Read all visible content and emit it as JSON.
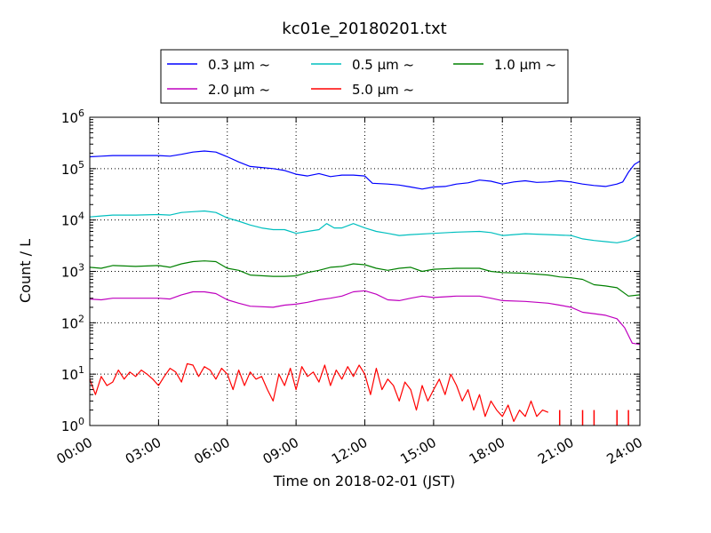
{
  "chart_data": {
    "type": "line",
    "title": "kc01e_20180201.txt",
    "xlabel": "Time on 2018-02-01 (JST)",
    "ylabel": "Count / L",
    "y_scale": "log",
    "ylim": [
      1,
      1000000
    ],
    "xlim": [
      "00:00",
      "24:00"
    ],
    "x_ticks": [
      "00:00",
      "03:00",
      "06:00",
      "09:00",
      "12:00",
      "15:00",
      "18:00",
      "21:00",
      "24:00"
    ],
    "y_ticks": [
      {
        "base": "10",
        "exp": "0"
      },
      {
        "base": "10",
        "exp": "1"
      },
      {
        "base": "10",
        "exp": "2"
      },
      {
        "base": "10",
        "exp": "3"
      },
      {
        "base": "10",
        "exp": "4"
      },
      {
        "base": "10",
        "exp": "5"
      },
      {
        "base": "10",
        "exp": "6"
      }
    ],
    "grid": true,
    "legend_placement": "top-center",
    "series": [
      {
        "name": "0.3 μm ~",
        "color": "#0000ff",
        "points": [
          [
            "00:00",
            170000
          ],
          [
            "00:30",
            175000
          ],
          [
            "01:00",
            180000
          ],
          [
            "02:00",
            180000
          ],
          [
            "03:00",
            180000
          ],
          [
            "03:30",
            175000
          ],
          [
            "04:00",
            190000
          ],
          [
            "04:30",
            210000
          ],
          [
            "05:00",
            220000
          ],
          [
            "05:30",
            210000
          ],
          [
            "06:00",
            170000
          ],
          [
            "06:30",
            135000
          ],
          [
            "07:00",
            110000
          ],
          [
            "07:30",
            105000
          ],
          [
            "08:00",
            100000
          ],
          [
            "08:30",
            92000
          ],
          [
            "09:00",
            78000
          ],
          [
            "09:30",
            72000
          ],
          [
            "10:00",
            80000
          ],
          [
            "10:30",
            70000
          ],
          [
            "11:00",
            75000
          ],
          [
            "11:30",
            75000
          ],
          [
            "12:00",
            72000
          ],
          [
            "12:20",
            52000
          ],
          [
            "13:00",
            50000
          ],
          [
            "13:30",
            48000
          ],
          [
            "14:00",
            44000
          ],
          [
            "14:30",
            40000
          ],
          [
            "15:00",
            44000
          ],
          [
            "15:30",
            45000
          ],
          [
            "16:00",
            50000
          ],
          [
            "16:30",
            53000
          ],
          [
            "17:00",
            60000
          ],
          [
            "17:30",
            57000
          ],
          [
            "18:00",
            50000
          ],
          [
            "18:30",
            55000
          ],
          [
            "19:00",
            58000
          ],
          [
            "19:30",
            54000
          ],
          [
            "20:00",
            55000
          ],
          [
            "20:30",
            58000
          ],
          [
            "21:00",
            55000
          ],
          [
            "21:30",
            50000
          ],
          [
            "22:00",
            47000
          ],
          [
            "22:30",
            45000
          ],
          [
            "23:00",
            50000
          ],
          [
            "23:15",
            55000
          ],
          [
            "23:30",
            85000
          ],
          [
            "23:45",
            120000
          ],
          [
            "24:00",
            140000
          ]
        ]
      },
      {
        "name": "0.5 μm ~",
        "color": "#00bfbf",
        "points": [
          [
            "00:00",
            11500
          ],
          [
            "00:30",
            12000
          ],
          [
            "01:00",
            12500
          ],
          [
            "02:00",
            12500
          ],
          [
            "03:00",
            12800
          ],
          [
            "03:30",
            12500
          ],
          [
            "04:00",
            14000
          ],
          [
            "04:30",
            14500
          ],
          [
            "05:00",
            15000
          ],
          [
            "05:30",
            14000
          ],
          [
            "06:00",
            11000
          ],
          [
            "06:30",
            9500
          ],
          [
            "07:00",
            8000
          ],
          [
            "07:30",
            7000
          ],
          [
            "08:00",
            6500
          ],
          [
            "08:30",
            6500
          ],
          [
            "09:00",
            5500
          ],
          [
            "09:30",
            6000
          ],
          [
            "10:00",
            6500
          ],
          [
            "10:20",
            8500
          ],
          [
            "10:40",
            7000
          ],
          [
            "11:00",
            7000
          ],
          [
            "11:30",
            8500
          ],
          [
            "12:00",
            7000
          ],
          [
            "12:30",
            6000
          ],
          [
            "13:00",
            5500
          ],
          [
            "13:30",
            5000
          ],
          [
            "14:00",
            5200
          ],
          [
            "15:00",
            5500
          ],
          [
            "16:00",
            5800
          ],
          [
            "17:00",
            6000
          ],
          [
            "17:30",
            5700
          ],
          [
            "18:00",
            5000
          ],
          [
            "18:30",
            5200
          ],
          [
            "19:00",
            5400
          ],
          [
            "20:00",
            5200
          ],
          [
            "21:00",
            5000
          ],
          [
            "21:30",
            4300
          ],
          [
            "22:00",
            4000
          ],
          [
            "22:30",
            3800
          ],
          [
            "23:00",
            3600
          ],
          [
            "23:30",
            4000
          ],
          [
            "24:00",
            5200
          ]
        ]
      },
      {
        "name": "1.0 μm ~",
        "color": "#008000",
        "points": [
          [
            "00:00",
            1200
          ],
          [
            "00:30",
            1150
          ],
          [
            "01:00",
            1300
          ],
          [
            "02:00",
            1250
          ],
          [
            "03:00",
            1300
          ],
          [
            "03:30",
            1200
          ],
          [
            "04:00",
            1400
          ],
          [
            "04:30",
            1550
          ],
          [
            "05:00",
            1600
          ],
          [
            "05:30",
            1550
          ],
          [
            "06:00",
            1150
          ],
          [
            "06:30",
            1050
          ],
          [
            "07:00",
            850
          ],
          [
            "08:00",
            800
          ],
          [
            "08:30",
            800
          ],
          [
            "09:00",
            820
          ],
          [
            "09:30",
            950
          ],
          [
            "10:00",
            1050
          ],
          [
            "10:30",
            1200
          ],
          [
            "11:00",
            1250
          ],
          [
            "11:30",
            1400
          ],
          [
            "12:00",
            1350
          ],
          [
            "12:30",
            1150
          ],
          [
            "13:00",
            1050
          ],
          [
            "13:30",
            1150
          ],
          [
            "14:00",
            1200
          ],
          [
            "14:30",
            1000
          ],
          [
            "15:00",
            1100
          ],
          [
            "16:00",
            1150
          ],
          [
            "17:00",
            1150
          ],
          [
            "17:30",
            1000
          ],
          [
            "18:00",
            950
          ],
          [
            "19:00",
            920
          ],
          [
            "20:00",
            850
          ],
          [
            "20:30",
            780
          ],
          [
            "21:00",
            750
          ],
          [
            "21:30",
            700
          ],
          [
            "22:00",
            550
          ],
          [
            "22:30",
            520
          ],
          [
            "23:00",
            480
          ],
          [
            "23:30",
            330
          ],
          [
            "24:00",
            350
          ]
        ]
      },
      {
        "name": "2.0 μm ~",
        "color": "#bf00bf",
        "points": [
          [
            "00:00",
            290
          ],
          [
            "00:30",
            280
          ],
          [
            "01:00",
            300
          ],
          [
            "02:00",
            300
          ],
          [
            "03:00",
            300
          ],
          [
            "03:30",
            290
          ],
          [
            "04:00",
            350
          ],
          [
            "04:30",
            400
          ],
          [
            "05:00",
            400
          ],
          [
            "05:30",
            370
          ],
          [
            "06:00",
            280
          ],
          [
            "06:30",
            240
          ],
          [
            "07:00",
            210
          ],
          [
            "08:00",
            200
          ],
          [
            "08:30",
            220
          ],
          [
            "09:00",
            230
          ],
          [
            "09:30",
            250
          ],
          [
            "10:00",
            280
          ],
          [
            "10:30",
            300
          ],
          [
            "11:00",
            330
          ],
          [
            "11:30",
            400
          ],
          [
            "12:00",
            420
          ],
          [
            "12:30",
            360
          ],
          [
            "13:00",
            280
          ],
          [
            "13:30",
            270
          ],
          [
            "14:00",
            300
          ],
          [
            "14:30",
            330
          ],
          [
            "15:00",
            310
          ],
          [
            "16:00",
            330
          ],
          [
            "17:00",
            330
          ],
          [
            "17:30",
            300
          ],
          [
            "18:00",
            270
          ],
          [
            "19:00",
            260
          ],
          [
            "20:00",
            240
          ],
          [
            "20:30",
            220
          ],
          [
            "21:00",
            200
          ],
          [
            "21:30",
            160
          ],
          [
            "22:00",
            150
          ],
          [
            "22:30",
            140
          ],
          [
            "23:00",
            120
          ],
          [
            "23:20",
            80
          ],
          [
            "23:40",
            40
          ],
          [
            "24:00",
            38
          ]
        ]
      },
      {
        "name": "5.0 μm ~",
        "color": "#ff0000",
        "points": [
          [
            "00:00",
            8
          ],
          [
            "00:15",
            4
          ],
          [
            "00:30",
            9
          ],
          [
            "00:45",
            6
          ],
          [
            "01:00",
            7
          ],
          [
            "01:15",
            12
          ],
          [
            "01:30",
            8
          ],
          [
            "01:45",
            11
          ],
          [
            "02:00",
            9
          ],
          [
            "02:15",
            12
          ],
          [
            "02:30",
            10
          ],
          [
            "02:45",
            8
          ],
          [
            "03:00",
            6
          ],
          [
            "03:15",
            9
          ],
          [
            "03:30",
            13
          ],
          [
            "03:45",
            11
          ],
          [
            "04:00",
            7
          ],
          [
            "04:15",
            16
          ],
          [
            "04:30",
            15
          ],
          [
            "04:45",
            9
          ],
          [
            "05:00",
            14
          ],
          [
            "05:15",
            12
          ],
          [
            "05:30",
            8
          ],
          [
            "05:45",
            13
          ],
          [
            "06:00",
            10
          ],
          [
            "06:15",
            5
          ],
          [
            "06:30",
            12
          ],
          [
            "06:45",
            6
          ],
          [
            "07:00",
            11
          ],
          [
            "07:15",
            8
          ],
          [
            "07:30",
            9
          ],
          [
            "07:45",
            5
          ],
          [
            "08:00",
            3
          ],
          [
            "08:15",
            10
          ],
          [
            "08:30",
            6
          ],
          [
            "08:45",
            13
          ],
          [
            "09:00",
            5
          ],
          [
            "09:15",
            14
          ],
          [
            "09:30",
            9
          ],
          [
            "09:45",
            11
          ],
          [
            "10:00",
            7
          ],
          [
            "10:15",
            15
          ],
          [
            "10:30",
            6
          ],
          [
            "10:45",
            12
          ],
          [
            "11:00",
            8
          ],
          [
            "11:15",
            14
          ],
          [
            "11:30",
            9
          ],
          [
            "11:45",
            15
          ],
          [
            "12:00",
            10
          ],
          [
            "12:15",
            4
          ],
          [
            "12:30",
            13
          ],
          [
            "12:45",
            5
          ],
          [
            "13:00",
            8
          ],
          [
            "13:15",
            6
          ],
          [
            "13:30",
            3
          ],
          [
            "13:45",
            7
          ],
          [
            "14:00",
            5
          ],
          [
            "14:15",
            2
          ],
          [
            "14:30",
            6
          ],
          [
            "14:45",
            3
          ],
          [
            "15:00",
            5
          ],
          [
            "15:15",
            8
          ],
          [
            "15:30",
            4
          ],
          [
            "15:45",
            10
          ],
          [
            "16:00",
            6
          ],
          [
            "16:15",
            3
          ],
          [
            "16:30",
            5
          ],
          [
            "16:45",
            2
          ],
          [
            "17:00",
            4
          ],
          [
            "17:15",
            1.5
          ],
          [
            "17:30",
            3
          ],
          [
            "17:45",
            2
          ],
          [
            "18:00",
            1.5
          ],
          [
            "18:15",
            2.5
          ],
          [
            "18:30",
            1.2
          ],
          [
            "18:45",
            2
          ],
          [
            "19:00",
            1.5
          ],
          [
            "19:15",
            3
          ],
          [
            "19:30",
            1.5
          ],
          [
            "19:45",
            2
          ],
          [
            "20:00",
            1.8
          ]
        ],
        "spikes_at_floor": [
          "20:30",
          "21:30",
          "22:00",
          "23:00",
          "23:30"
        ]
      }
    ]
  }
}
